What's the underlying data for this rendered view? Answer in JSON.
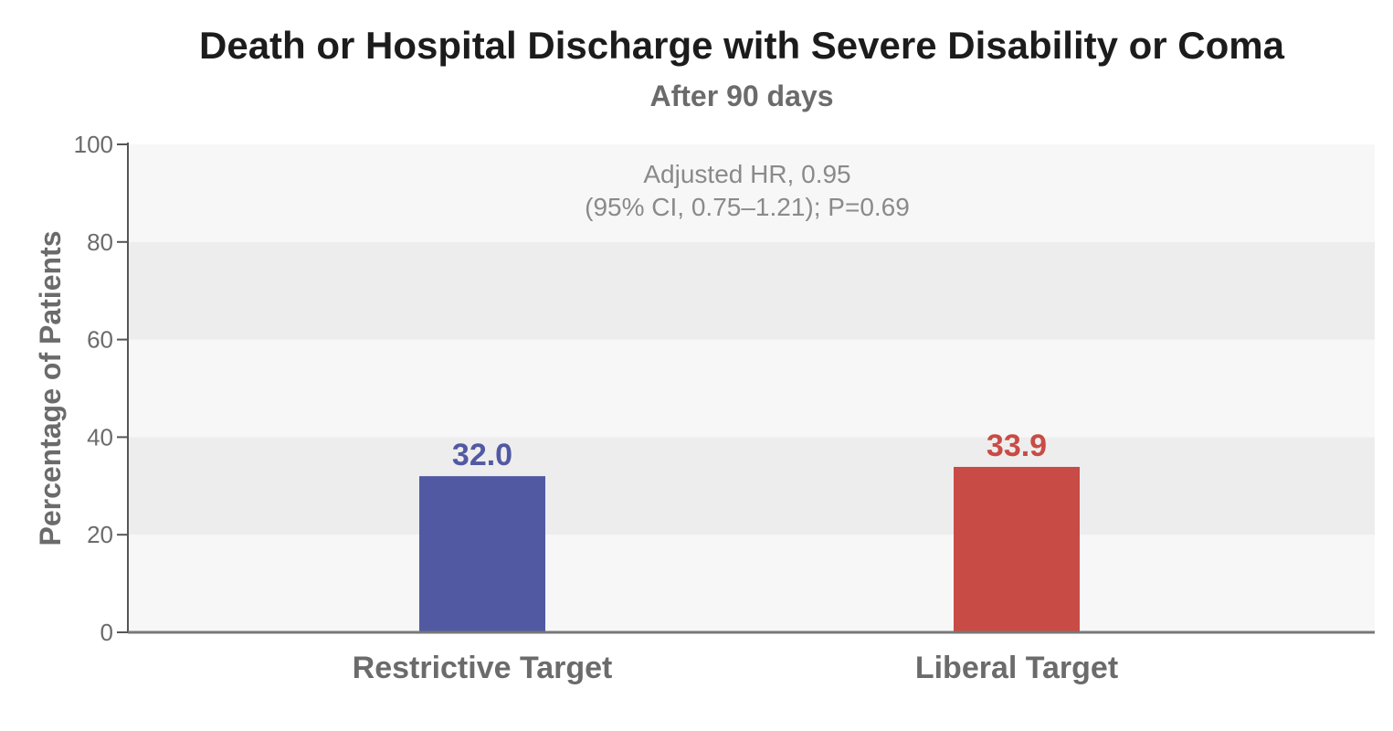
{
  "chart_data": {
    "type": "bar",
    "title": "Death or Hospital Discharge with Severe Disability or Coma",
    "subtitle": "After 90 days",
    "ylabel": "Percentage of Patients",
    "xlabel": "",
    "ylim": [
      0,
      100
    ],
    "yticks": [
      "0",
      "20",
      "40",
      "60",
      "80",
      "100"
    ],
    "categories": [
      "Restrictive Target",
      "Liberal Target"
    ],
    "values": [
      32.0,
      33.9
    ],
    "value_labels": [
      "32.0",
      "33.9"
    ],
    "colors": [
      "#5259a3",
      "#c94b45"
    ],
    "annotation": {
      "line1": "Adjusted HR, 0.95",
      "line2": "(95% CI, 0.75–1.21); P=0.69"
    },
    "band_colors": [
      "#f7f7f7",
      "#ededed"
    ],
    "grid": false,
    "legend": "none"
  }
}
